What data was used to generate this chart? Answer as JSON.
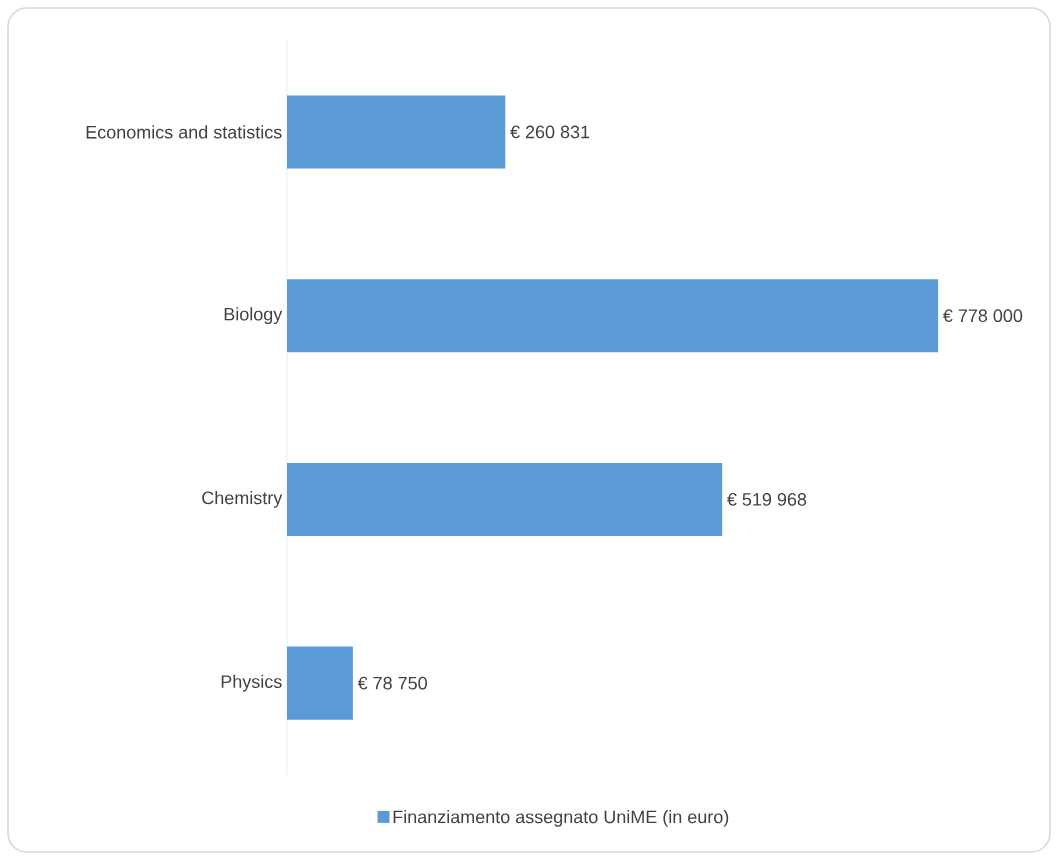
{
  "chart_data": {
    "type": "bar",
    "orientation": "horizontal",
    "categories": [
      "Economics and statistics",
      "Biology",
      "Chemistry",
      "Physics"
    ],
    "series": [
      {
        "name": "Finanziamento assegnato UniME (in euro)",
        "color": "#5b9bd5",
        "values": [
          260831,
          778000,
          519968,
          78750
        ],
        "value_labels": [
          "€ 260 831",
          "€ 778 000",
          "€ 519 968",
          "€ 78 750"
        ]
      }
    ],
    "legend": "bottom"
  }
}
